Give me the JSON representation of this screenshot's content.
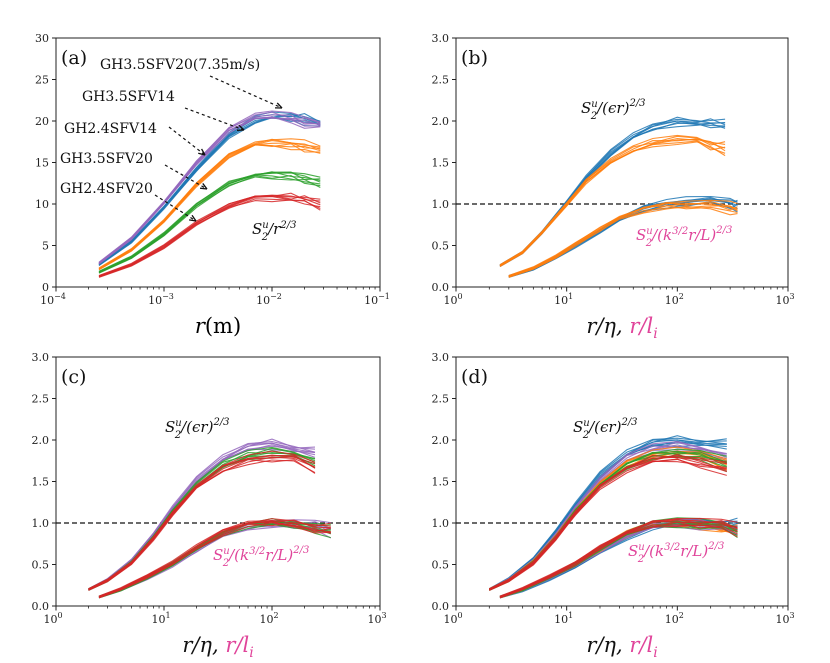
{
  "chart_data": [
    {
      "type": "line",
      "panel_label": "(a)",
      "xscale": "log",
      "xlim": [
        0.0001,
        0.1
      ],
      "ylim": [
        0,
        30
      ],
      "xticks": [
        0.0001,
        0.001,
        0.01,
        0.1
      ],
      "xtick_labels": [
        {
          "base": "10",
          "exp": "−4"
        },
        {
          "base": "10",
          "exp": "−3"
        },
        {
          "base": "10",
          "exp": "−2"
        },
        {
          "base": "10",
          "exp": "−1"
        }
      ],
      "yticks": [
        0,
        5,
        10,
        15,
        20,
        25,
        30
      ],
      "ytick_labels": [
        "0",
        "5",
        "10",
        "15",
        "20",
        "25",
        "30"
      ],
      "xlabel": {
        "main": "r",
        "rest": "(m)"
      },
      "ylabel_annotation": {
        "s": "S",
        "sup": "u",
        "sub": "2",
        "rest": "/r",
        "exp": "2/3"
      },
      "series": [
        {
          "name": "GH3.5SFV20(7.35m/s)",
          "color": "#1f77b4",
          "x": [
            0.00025,
            0.0005,
            0.001,
            0.002,
            0.004,
            0.007,
            0.01,
            0.015,
            0.02,
            0.028
          ],
          "y": [
            2.7,
            5.5,
            9.6,
            14.2,
            18.3,
            20.2,
            20.6,
            20.5,
            20.3,
            20.0
          ]
        },
        {
          "name": "GH3.5SFV14",
          "color": "#9467bd",
          "x": [
            0.00025,
            0.0005,
            0.001,
            0.002,
            0.004,
            0.007,
            0.01,
            0.015,
            0.02,
            0.028
          ],
          "y": [
            2.9,
            5.9,
            10.2,
            15.0,
            19.0,
            20.6,
            20.7,
            20.4,
            19.9,
            19.5
          ]
        },
        {
          "name": "GH2.4SFV14",
          "color": "#ff7f0e",
          "x": [
            0.00025,
            0.0005,
            0.001,
            0.002,
            0.004,
            0.007,
            0.01,
            0.015,
            0.02,
            0.028
          ],
          "y": [
            2.2,
            4.5,
            8.0,
            12.4,
            15.9,
            17.3,
            17.4,
            17.3,
            17.0,
            16.2
          ]
        },
        {
          "name": "GH3.5SFV20",
          "color": "#2ca02c",
          "x": [
            0.00025,
            0.0005,
            0.001,
            0.002,
            0.004,
            0.007,
            0.01,
            0.015,
            0.02,
            0.028
          ],
          "y": [
            1.8,
            3.6,
            6.4,
            9.9,
            12.5,
            13.5,
            13.6,
            13.5,
            13.1,
            12.4
          ]
        },
        {
          "name": "GH2.4SFV20",
          "color": "#d62728",
          "x": [
            0.00025,
            0.0005,
            0.001,
            0.002,
            0.004,
            0.007,
            0.01,
            0.015,
            0.02,
            0.028
          ],
          "y": [
            1.3,
            2.7,
            4.9,
            7.7,
            9.8,
            10.8,
            10.9,
            10.8,
            10.6,
            10.1
          ]
        }
      ],
      "annotations": [
        "GH3.5SFV20(7.35m/s)",
        "GH3.5SFV14",
        "GH2.4SFV14",
        "GH3.5SFV20",
        "GH2.4SFV20"
      ]
    },
    {
      "type": "line",
      "panel_label": "(b)",
      "xscale": "log",
      "xlim": [
        1,
        1000
      ],
      "ylim": [
        0,
        3
      ],
      "xticks": [
        1,
        10,
        100,
        1000
      ],
      "xtick_labels": [
        {
          "base": "10",
          "exp": "0"
        },
        {
          "base": "10",
          "exp": "1"
        },
        {
          "base": "10",
          "exp": "2"
        },
        {
          "base": "10",
          "exp": "3"
        }
      ],
      "yticks": [
        0,
        0.5,
        1.0,
        1.5,
        2.0,
        2.5,
        3.0
      ],
      "ytick_labels": [
        "0.0",
        "0.5",
        "1.0",
        "1.5",
        "2.0",
        "2.5",
        "3.0"
      ],
      "xlabel": {
        "a": "r/η, ",
        "b": "r/l",
        "b_sub": "i"
      },
      "hline": 1.0,
      "label_upper": {
        "s": "S",
        "sup": "u",
        "sub": "2",
        "rest": "/(ϵr)",
        "exp": "2/3"
      },
      "label_lower": {
        "s": "S",
        "sup": "u",
        "sub": "2",
        "rest": "/(k",
        "k_exp": "3/2",
        "rest2": "r/L)",
        "exp": "2/3"
      },
      "series": [
        {
          "name": "upper-blue",
          "color": "#1f77b4",
          "x": [
            2.5,
            4,
            6,
            10,
            15,
            25,
            40,
            60,
            100,
            150,
            200,
            270
          ],
          "y": [
            0.26,
            0.42,
            0.66,
            1.02,
            1.32,
            1.62,
            1.82,
            1.93,
            2.0,
            2.0,
            1.98,
            1.97
          ]
        },
        {
          "name": "upper-orange",
          "color": "#ff7f0e",
          "x": [
            2.5,
            4,
            6,
            10,
            15,
            25,
            40,
            60,
            100,
            150,
            200,
            270
          ],
          "y": [
            0.26,
            0.42,
            0.66,
            1.0,
            1.28,
            1.52,
            1.66,
            1.74,
            1.78,
            1.77,
            1.72,
            1.68
          ]
        },
        {
          "name": "lower-blue",
          "color": "#1f77b4",
          "x": [
            3,
            5,
            8,
            12,
            20,
            30,
            50,
            80,
            120,
            200,
            300,
            350
          ],
          "y": [
            0.13,
            0.22,
            0.36,
            0.5,
            0.68,
            0.82,
            0.95,
            1.01,
            1.03,
            1.03,
            1.02,
            1.0
          ]
        },
        {
          "name": "lower-orange",
          "color": "#ff7f0e",
          "x": [
            3,
            5,
            8,
            12,
            20,
            30,
            50,
            80,
            120,
            200,
            300,
            350
          ],
          "y": [
            0.13,
            0.23,
            0.37,
            0.52,
            0.7,
            0.84,
            0.94,
            0.99,
            0.99,
            0.98,
            0.96,
            0.94
          ]
        }
      ]
    },
    {
      "type": "line",
      "panel_label": "(c)",
      "xscale": "log",
      "xlim": [
        1,
        1000
      ],
      "ylim": [
        0,
        3
      ],
      "xticks": [
        1,
        10,
        100,
        1000
      ],
      "xtick_labels": [
        {
          "base": "10",
          "exp": "0"
        },
        {
          "base": "10",
          "exp": "1"
        },
        {
          "base": "10",
          "exp": "2"
        },
        {
          "base": "10",
          "exp": "3"
        }
      ],
      "yticks": [
        0,
        0.5,
        1.0,
        1.5,
        2.0,
        2.5,
        3.0
      ],
      "ytick_labels": [
        "0.0",
        "0.5",
        "1.0",
        "1.5",
        "2.0",
        "2.5",
        "3.0"
      ],
      "xlabel": {
        "a": "r/η, ",
        "b": "r/l",
        "b_sub": "i"
      },
      "hline": 1.0,
      "label_upper": {
        "s": "S",
        "sup": "u",
        "sub": "2",
        "rest": "/(ϵr)",
        "exp": "2/3"
      },
      "label_lower": {
        "s": "S",
        "sup": "u",
        "sub": "2",
        "rest": "/(k",
        "k_exp": "3/2",
        "rest2": "r/L)",
        "exp": "2/3"
      },
      "series": [
        {
          "name": "upper-purple",
          "color": "#9467bd",
          "x": [
            2,
            3,
            5,
            8,
            12,
            20,
            35,
            60,
            100,
            160,
            250
          ],
          "y": [
            0.2,
            0.32,
            0.55,
            0.86,
            1.18,
            1.52,
            1.78,
            1.92,
            1.96,
            1.92,
            1.86
          ]
        },
        {
          "name": "upper-green",
          "color": "#2ca02c",
          "x": [
            2,
            3,
            5,
            8,
            12,
            20,
            35,
            60,
            100,
            160,
            250
          ],
          "y": [
            0.2,
            0.31,
            0.53,
            0.83,
            1.14,
            1.46,
            1.7,
            1.82,
            1.86,
            1.82,
            1.74
          ]
        },
        {
          "name": "upper-red",
          "color": "#d62728",
          "x": [
            2,
            3,
            5,
            8,
            12,
            20,
            35,
            60,
            100,
            160,
            250
          ],
          "y": [
            0.2,
            0.31,
            0.52,
            0.82,
            1.12,
            1.44,
            1.66,
            1.77,
            1.8,
            1.76,
            1.68
          ]
        },
        {
          "name": "lower-purple",
          "color": "#9467bd",
          "x": [
            2.5,
            4,
            7,
            12,
            20,
            35,
            60,
            100,
            160,
            250,
            350
          ],
          "y": [
            0.11,
            0.2,
            0.34,
            0.5,
            0.68,
            0.86,
            0.97,
            1.0,
            0.99,
            0.96,
            0.92
          ]
        },
        {
          "name": "lower-green",
          "color": "#2ca02c",
          "x": [
            2.5,
            4,
            7,
            12,
            20,
            35,
            60,
            100,
            160,
            250,
            350
          ],
          "y": [
            0.11,
            0.2,
            0.35,
            0.51,
            0.7,
            0.88,
            0.99,
            1.01,
            0.99,
            0.95,
            0.91
          ]
        },
        {
          "name": "lower-red",
          "color": "#d62728",
          "x": [
            2.5,
            4,
            7,
            12,
            20,
            35,
            60,
            100,
            160,
            250,
            350
          ],
          "y": [
            0.11,
            0.21,
            0.36,
            0.52,
            0.71,
            0.89,
            1.0,
            1.02,
            1.0,
            0.97,
            0.93
          ]
        }
      ]
    },
    {
      "type": "line",
      "panel_label": "(d)",
      "xscale": "log",
      "xlim": [
        1,
        1000
      ],
      "ylim": [
        0,
        3
      ],
      "xticks": [
        1,
        10,
        100,
        1000
      ],
      "xtick_labels": [
        {
          "base": "10",
          "exp": "0"
        },
        {
          "base": "10",
          "exp": "1"
        },
        {
          "base": "10",
          "exp": "2"
        },
        {
          "base": "10",
          "exp": "3"
        }
      ],
      "yticks": [
        0,
        0.5,
        1.0,
        1.5,
        2.0,
        2.5,
        3.0
      ],
      "ytick_labels": [
        "0.0",
        "0.5",
        "1.0",
        "1.5",
        "2.0",
        "2.5",
        "3.0"
      ],
      "xlabel": {
        "a": "r/η, ",
        "b": "r/l",
        "b_sub": "i"
      },
      "hline": 1.0,
      "label_upper": {
        "s": "S",
        "sup": "u",
        "sub": "2",
        "rest": "/(ϵr)",
        "exp": "2/3"
      },
      "label_lower": {
        "s": "S",
        "sup": "u",
        "sub": "2",
        "rest": "/(k",
        "k_exp": "3/2",
        "rest2": "r/L)",
        "exp": "2/3"
      },
      "series": [
        {
          "name": "upper-blue",
          "color": "#1f77b4",
          "x": [
            2,
            3,
            5,
            8,
            12,
            20,
            35,
            60,
            100,
            160,
            280
          ],
          "y": [
            0.2,
            0.33,
            0.57,
            0.9,
            1.22,
            1.58,
            1.84,
            1.97,
            2.0,
            1.99,
            1.96
          ]
        },
        {
          "name": "upper-purple",
          "color": "#9467bd",
          "x": [
            2,
            3,
            5,
            8,
            12,
            20,
            35,
            60,
            100,
            160,
            280
          ],
          "y": [
            0.2,
            0.32,
            0.55,
            0.86,
            1.18,
            1.52,
            1.78,
            1.9,
            1.93,
            1.88,
            1.8
          ]
        },
        {
          "name": "upper-orange",
          "color": "#ff7f0e",
          "x": [
            2,
            3,
            5,
            8,
            12,
            20,
            35,
            60,
            100,
            160,
            280
          ],
          "y": [
            0.2,
            0.31,
            0.54,
            0.84,
            1.15,
            1.48,
            1.72,
            1.83,
            1.85,
            1.8,
            1.72
          ]
        },
        {
          "name": "upper-green",
          "color": "#2ca02c",
          "x": [
            2,
            3,
            5,
            8,
            12,
            20,
            35,
            60,
            100,
            160,
            280
          ],
          "y": [
            0.2,
            0.31,
            0.53,
            0.83,
            1.14,
            1.46,
            1.7,
            1.82,
            1.84,
            1.8,
            1.72
          ]
        },
        {
          "name": "upper-red",
          "color": "#d62728",
          "x": [
            2,
            3,
            5,
            8,
            12,
            20,
            35,
            60,
            100,
            160,
            280
          ],
          "y": [
            0.2,
            0.31,
            0.52,
            0.82,
            1.12,
            1.44,
            1.66,
            1.77,
            1.79,
            1.74,
            1.66
          ]
        },
        {
          "name": "lower-blue",
          "color": "#1f77b4",
          "x": [
            2.5,
            4,
            7,
            12,
            20,
            35,
            60,
            100,
            160,
            250,
            350
          ],
          "y": [
            0.11,
            0.19,
            0.33,
            0.48,
            0.66,
            0.84,
            0.96,
            1.01,
            1.02,
            1.01,
            0.99
          ]
        },
        {
          "name": "lower-orange",
          "color": "#ff7f0e",
          "x": [
            2.5,
            4,
            7,
            12,
            20,
            35,
            60,
            100,
            160,
            250,
            350
          ],
          "y": [
            0.11,
            0.2,
            0.35,
            0.51,
            0.69,
            0.87,
            0.98,
            1.0,
            0.99,
            0.96,
            0.93
          ]
        },
        {
          "name": "lower-purple",
          "color": "#9467bd",
          "x": [
            2.5,
            4,
            7,
            12,
            20,
            35,
            60,
            100,
            160,
            250,
            350
          ],
          "y": [
            0.11,
            0.2,
            0.34,
            0.5,
            0.68,
            0.86,
            0.97,
            1.0,
            0.99,
            0.96,
            0.92
          ]
        },
        {
          "name": "lower-green",
          "color": "#2ca02c",
          "x": [
            2.5,
            4,
            7,
            12,
            20,
            35,
            60,
            100,
            160,
            250,
            350
          ],
          "y": [
            0.11,
            0.2,
            0.35,
            0.51,
            0.7,
            0.88,
            0.99,
            1.01,
            0.99,
            0.95,
            0.91
          ]
        },
        {
          "name": "lower-red",
          "color": "#d62728",
          "x": [
            2.5,
            4,
            7,
            12,
            20,
            35,
            60,
            100,
            160,
            250,
            350
          ],
          "y": [
            0.11,
            0.21,
            0.36,
            0.52,
            0.71,
            0.89,
            1.0,
            1.02,
            1.0,
            0.97,
            0.93
          ]
        }
      ]
    }
  ],
  "colors": {
    "magenta_label": "#e0449a",
    "axis": "#222222",
    "hline": "#111111"
  }
}
